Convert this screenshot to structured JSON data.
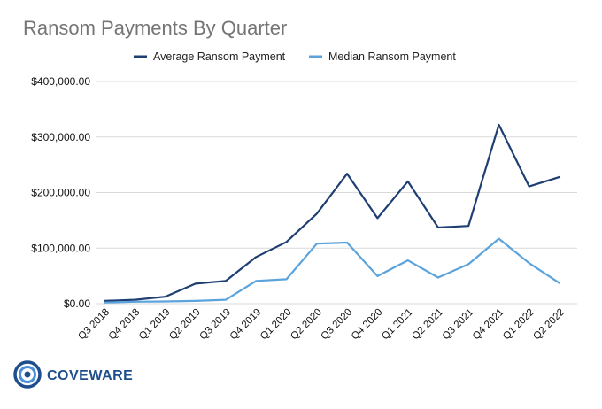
{
  "chart_data": {
    "type": "line",
    "title": "Ransom Payments By Quarter",
    "xlabel": "",
    "ylabel": "",
    "categories": [
      "Q3 2018",
      "Q4 2018",
      "Q1 2019",
      "Q2 2019",
      "Q3 2019",
      "Q4 2019",
      "Q1 2020",
      "Q2 2020",
      "Q3 2020",
      "Q4 2020",
      "Q1 2021",
      "Q2 2021",
      "Q3 2021",
      "Q4 2021",
      "Q1 2022",
      "Q2 2022"
    ],
    "ylim": [
      0,
      400000
    ],
    "yticks": [
      0,
      100000,
      200000,
      300000,
      400000
    ],
    "ytick_labels": [
      "$0.00",
      "$100,000.00",
      "$200,000.00",
      "$300,000.00",
      "$400,000.00"
    ],
    "grid": true,
    "legend_position": "top-center",
    "series": [
      {
        "name": "Average Ransom Payment",
        "color": "#1f3f73",
        "values": [
          5000,
          7000,
          12500,
          36000,
          41000,
          84000,
          111000,
          162000,
          234000,
          154000,
          220000,
          137000,
          140000,
          322000,
          211000,
          228000
        ]
      },
      {
        "name": "Median Ransom Payment",
        "color": "#5ba3dc",
        "values": [
          2000,
          3500,
          4000,
          5000,
          7000,
          41000,
          44000,
          108000,
          110000,
          49500,
          78000,
          47000,
          71000,
          117000,
          73000,
          37000
        ]
      }
    ]
  },
  "logo": {
    "text": "COVEWARE",
    "color": "#1f4e8c"
  }
}
